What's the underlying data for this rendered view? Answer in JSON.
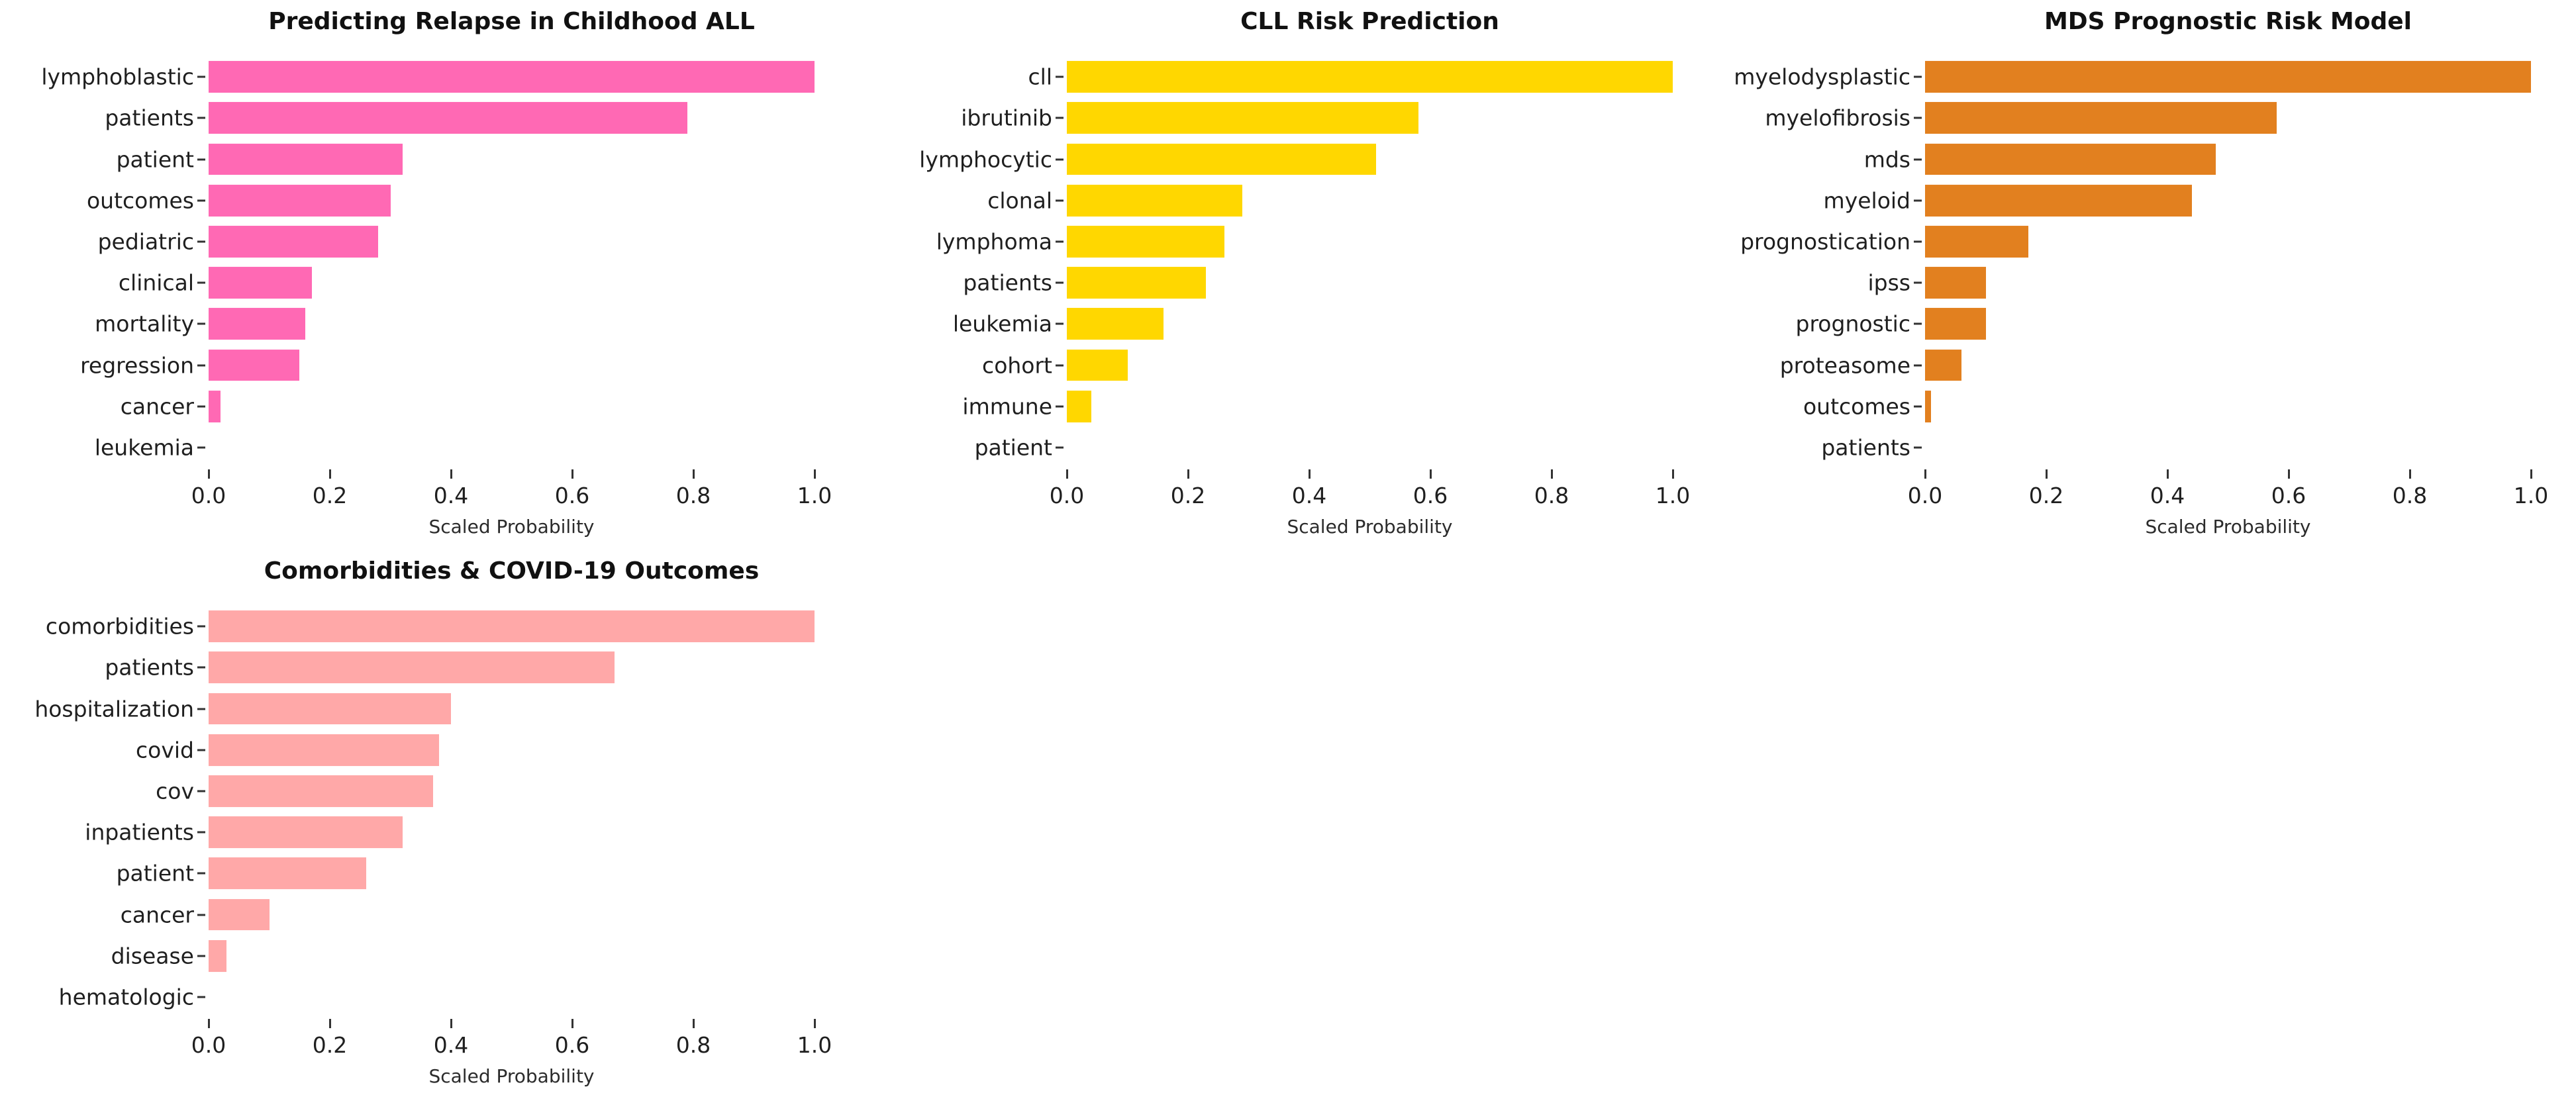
{
  "figure": {
    "background": "#ffffff",
    "text_color": "#111111",
    "tick_color": "#333333"
  },
  "chart_data": [
    {
      "type": "bar",
      "orientation": "horizontal",
      "title": "Predicting Relapse in Childhood ALL",
      "bar_color": "#FF69B4",
      "xlabel": "Scaled Probability",
      "xlim": [
        0.0,
        1.0
      ],
      "x_ticks": [
        "0.0",
        "0.2",
        "0.4",
        "0.6",
        "0.8",
        "1.0"
      ],
      "grid": false,
      "categories": [
        "lymphoblastic",
        "patients",
        "patient",
        "outcomes",
        "pediatric",
        "clinical",
        "mortality",
        "regression",
        "cancer",
        "leukemia"
      ],
      "values": [
        1.0,
        0.79,
        0.32,
        0.3,
        0.28,
        0.17,
        0.16,
        0.15,
        0.02,
        0.0
      ]
    },
    {
      "type": "bar",
      "orientation": "horizontal",
      "title": "CLL Risk Prediction",
      "bar_color": "#FFD700",
      "xlabel": "Scaled Probability",
      "xlim": [
        0.0,
        1.0
      ],
      "x_ticks": [
        "0.0",
        "0.2",
        "0.4",
        "0.6",
        "0.8",
        "1.0"
      ],
      "grid": false,
      "categories": [
        "cll",
        "ibrutinib",
        "lymphocytic",
        "clonal",
        "lymphoma",
        "patients",
        "leukemia",
        "cohort",
        "immune",
        "patient"
      ],
      "values": [
        1.0,
        0.58,
        0.51,
        0.29,
        0.26,
        0.23,
        0.16,
        0.1,
        0.04,
        0.0
      ]
    },
    {
      "type": "bar",
      "orientation": "horizontal",
      "title": "MDS Prognostic Risk Model",
      "bar_color": "#E2801F",
      "xlabel": "Scaled Probability",
      "xlim": [
        0.0,
        1.0
      ],
      "x_ticks": [
        "0.0",
        "0.2",
        "0.4",
        "0.6",
        "0.8",
        "1.0"
      ],
      "grid": false,
      "categories": [
        "myelodysplastic",
        "myelofibrosis",
        "mds",
        "myeloid",
        "prognostication",
        "ipss",
        "prognostic",
        "proteasome",
        "outcomes",
        "patients"
      ],
      "values": [
        1.0,
        0.58,
        0.48,
        0.44,
        0.17,
        0.1,
        0.1,
        0.06,
        0.01,
        0.0
      ]
    },
    {
      "type": "bar",
      "orientation": "horizontal",
      "title": "Comorbidities & COVID-19 Outcomes",
      "bar_color": "#FFA8A8",
      "xlabel": "Scaled Probability",
      "xlim": [
        0.0,
        1.0
      ],
      "x_ticks": [
        "0.0",
        "0.2",
        "0.4",
        "0.6",
        "0.8",
        "1.0"
      ],
      "grid": false,
      "categories": [
        "comorbidities",
        "patients",
        "hospitalization",
        "covid",
        "cov",
        "inpatients",
        "patient",
        "cancer",
        "disease",
        "hematologic"
      ],
      "values": [
        1.0,
        0.67,
        0.4,
        0.38,
        0.37,
        0.32,
        0.26,
        0.1,
        0.03,
        0.0
      ]
    }
  ]
}
